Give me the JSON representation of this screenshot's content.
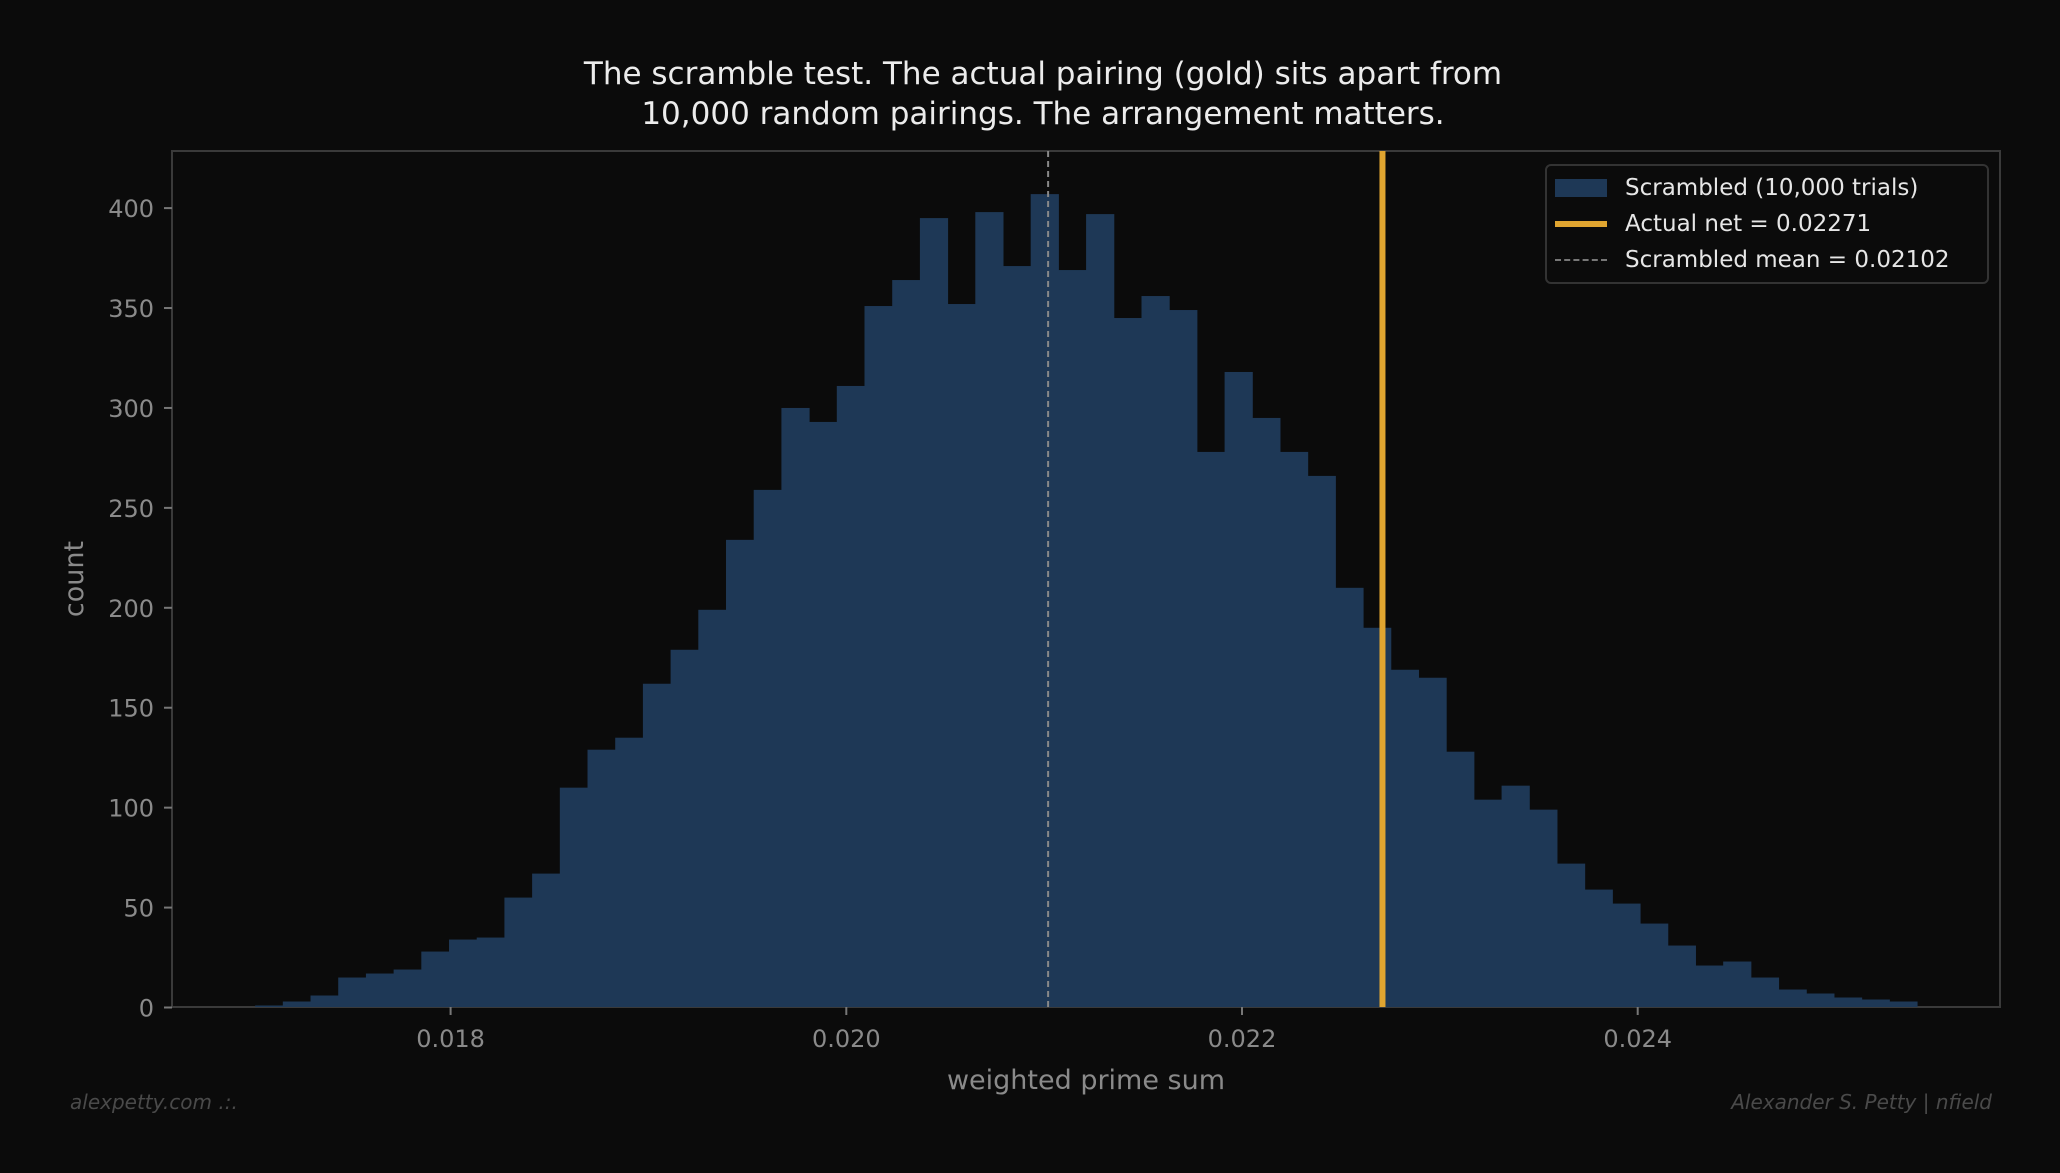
{
  "title_line1": "The scramble test. The actual pairing (gold) sits apart from",
  "title_line2": "10,000 random pairings. The arrangement matters.",
  "footer_left": "alexpetty.com  .:.",
  "footer_right": "Alexander S. Petty  |  nfield",
  "colors": {
    "background": "#0b0b0b",
    "bars": "#1e3856",
    "actual": "#e0a530",
    "mean": "#888888",
    "text": "#8a8a8a"
  },
  "chart_data": {
    "type": "bar",
    "subtype": "histogram",
    "title": "The scramble test. The actual pairing (gold) sits apart from 10,000 random pairings. The arrangement matters.",
    "xlabel": "weighted prime sum",
    "ylabel": "count",
    "xlim": [
      0.01665,
      0.0259
    ],
    "ylim": [
      0,
      428
    ],
    "xticks": [
      0.018,
      0.02,
      0.022,
      0.024
    ],
    "xtick_labels": [
      "0.018",
      "0.020",
      "0.022",
      "0.024"
    ],
    "yticks": [
      0,
      50,
      100,
      150,
      200,
      250,
      300,
      350,
      400
    ],
    "ytick_labels": [
      "0",
      "50",
      "100",
      "150",
      "200",
      "250",
      "300",
      "350",
      "400"
    ],
    "grid": false,
    "bin_start": 0.017012,
    "bin_width": 0.00014,
    "counts": [
      1,
      3,
      6,
      15,
      17,
      19,
      28,
      34,
      35,
      55,
      67,
      110,
      129,
      135,
      162,
      179,
      199,
      234,
      259,
      300,
      293,
      311,
      351,
      364,
      395,
      352,
      398,
      371,
      407,
      369,
      397,
      345,
      356,
      349,
      278,
      318,
      295,
      278,
      266,
      210,
      190,
      169,
      165,
      128,
      104,
      111,
      99,
      72,
      59,
      52,
      42,
      31,
      21,
      23,
      15,
      9,
      7,
      5,
      4,
      3
    ],
    "actual_value": 0.02271,
    "mean_value": 0.02102,
    "legend_position": "top-right",
    "legend": [
      {
        "label": "Scrambled (10,000 trials)",
        "kind": "patch"
      },
      {
        "label": "Actual net = 0.02271",
        "kind": "line"
      },
      {
        "label": "Scrambled mean = 0.02102",
        "kind": "dashed-line"
      }
    ]
  }
}
